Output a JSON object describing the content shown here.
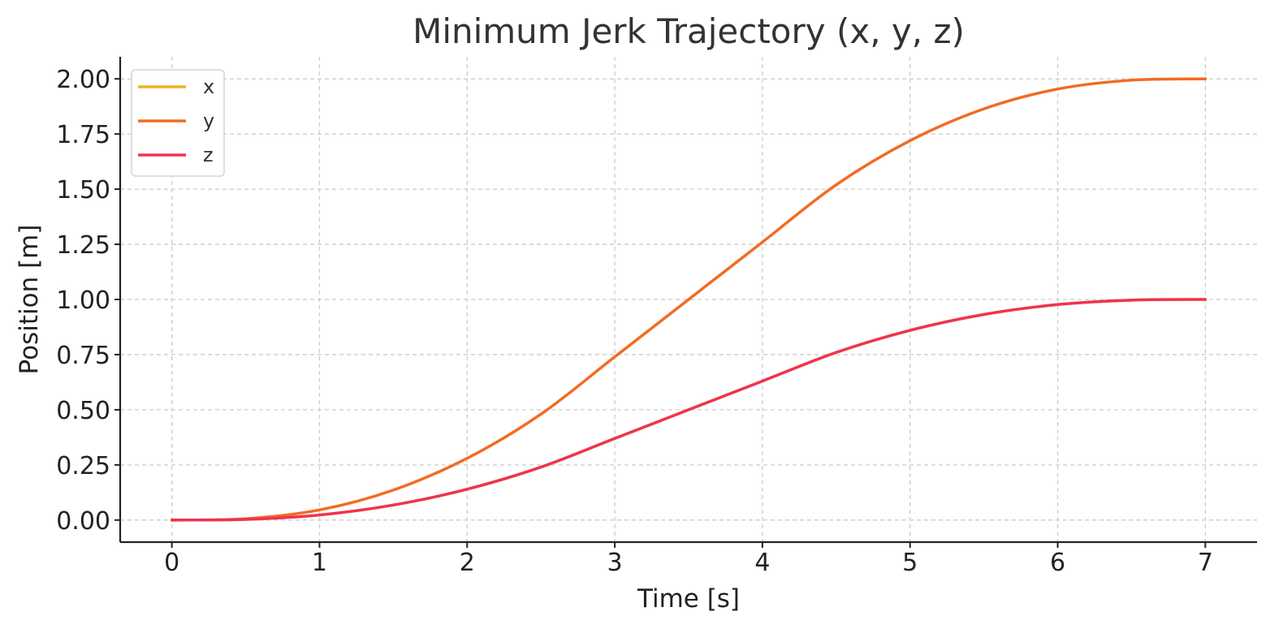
{
  "chart_data": {
    "type": "line",
    "title": "Minimum Jerk Trajectory (x, y, z)",
    "xlabel": "Time [s]",
    "ylabel": "Position [m]",
    "xlim": [
      -0.35,
      7.35
    ],
    "ylim": [
      -0.1,
      2.1
    ],
    "xticks": [
      0,
      1,
      2,
      3,
      4,
      5,
      6,
      7
    ],
    "xtick_labels": [
      "0",
      "1",
      "2",
      "3",
      "4",
      "5",
      "6",
      "7"
    ],
    "yticks": [
      0,
      0.25,
      0.5,
      0.75,
      1.0,
      1.25,
      1.5,
      1.75,
      2.0
    ],
    "ytick_labels": [
      "0.00",
      "0.25",
      "0.50",
      "0.75",
      "1.00",
      "1.25",
      "1.50",
      "1.75",
      "2.00"
    ],
    "grid": true,
    "legend_position": "top-left",
    "x": [
      0,
      0.5,
      1,
      1.5,
      2,
      2.5,
      3,
      3.5,
      4,
      4.5,
      5,
      5.5,
      6,
      6.5,
      7
    ],
    "series": [
      {
        "name": "x",
        "color": "#f0b323",
        "values": [
          0,
          0.003,
          0.023,
          0.068,
          0.14,
          0.24,
          0.37,
          0.5,
          0.63,
          0.76,
          0.86,
          0.932,
          0.977,
          0.997,
          1.0
        ]
      },
      {
        "name": "y",
        "color": "#f26b21",
        "values": [
          0,
          0.006,
          0.046,
          0.136,
          0.28,
          0.48,
          0.74,
          1.0,
          1.26,
          1.52,
          1.72,
          1.864,
          1.954,
          1.994,
          2.0
        ]
      },
      {
        "name": "z",
        "color": "#ee3452",
        "values": [
          0,
          0.003,
          0.023,
          0.068,
          0.14,
          0.24,
          0.37,
          0.5,
          0.63,
          0.76,
          0.86,
          0.932,
          0.977,
          0.997,
          1.0
        ]
      }
    ]
  }
}
